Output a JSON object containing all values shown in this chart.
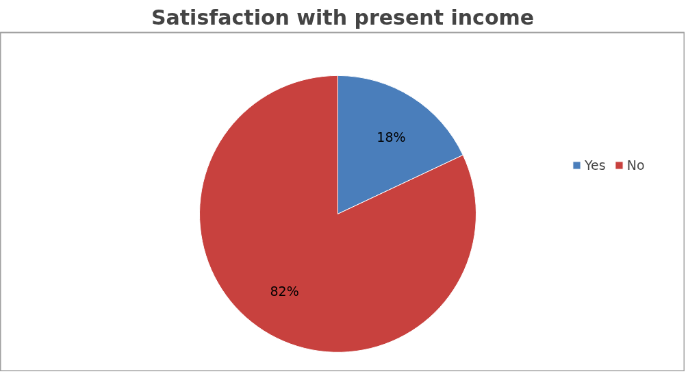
{
  "chart_data": {
    "type": "pie",
    "title": "Satisfaction with present income",
    "categories": [
      "Yes",
      "No"
    ],
    "values": [
      18,
      82
    ],
    "colors": [
      "#4a7ebb",
      "#c8413e"
    ],
    "value_labels": [
      "18%",
      "82%"
    ],
    "legend": "right"
  }
}
